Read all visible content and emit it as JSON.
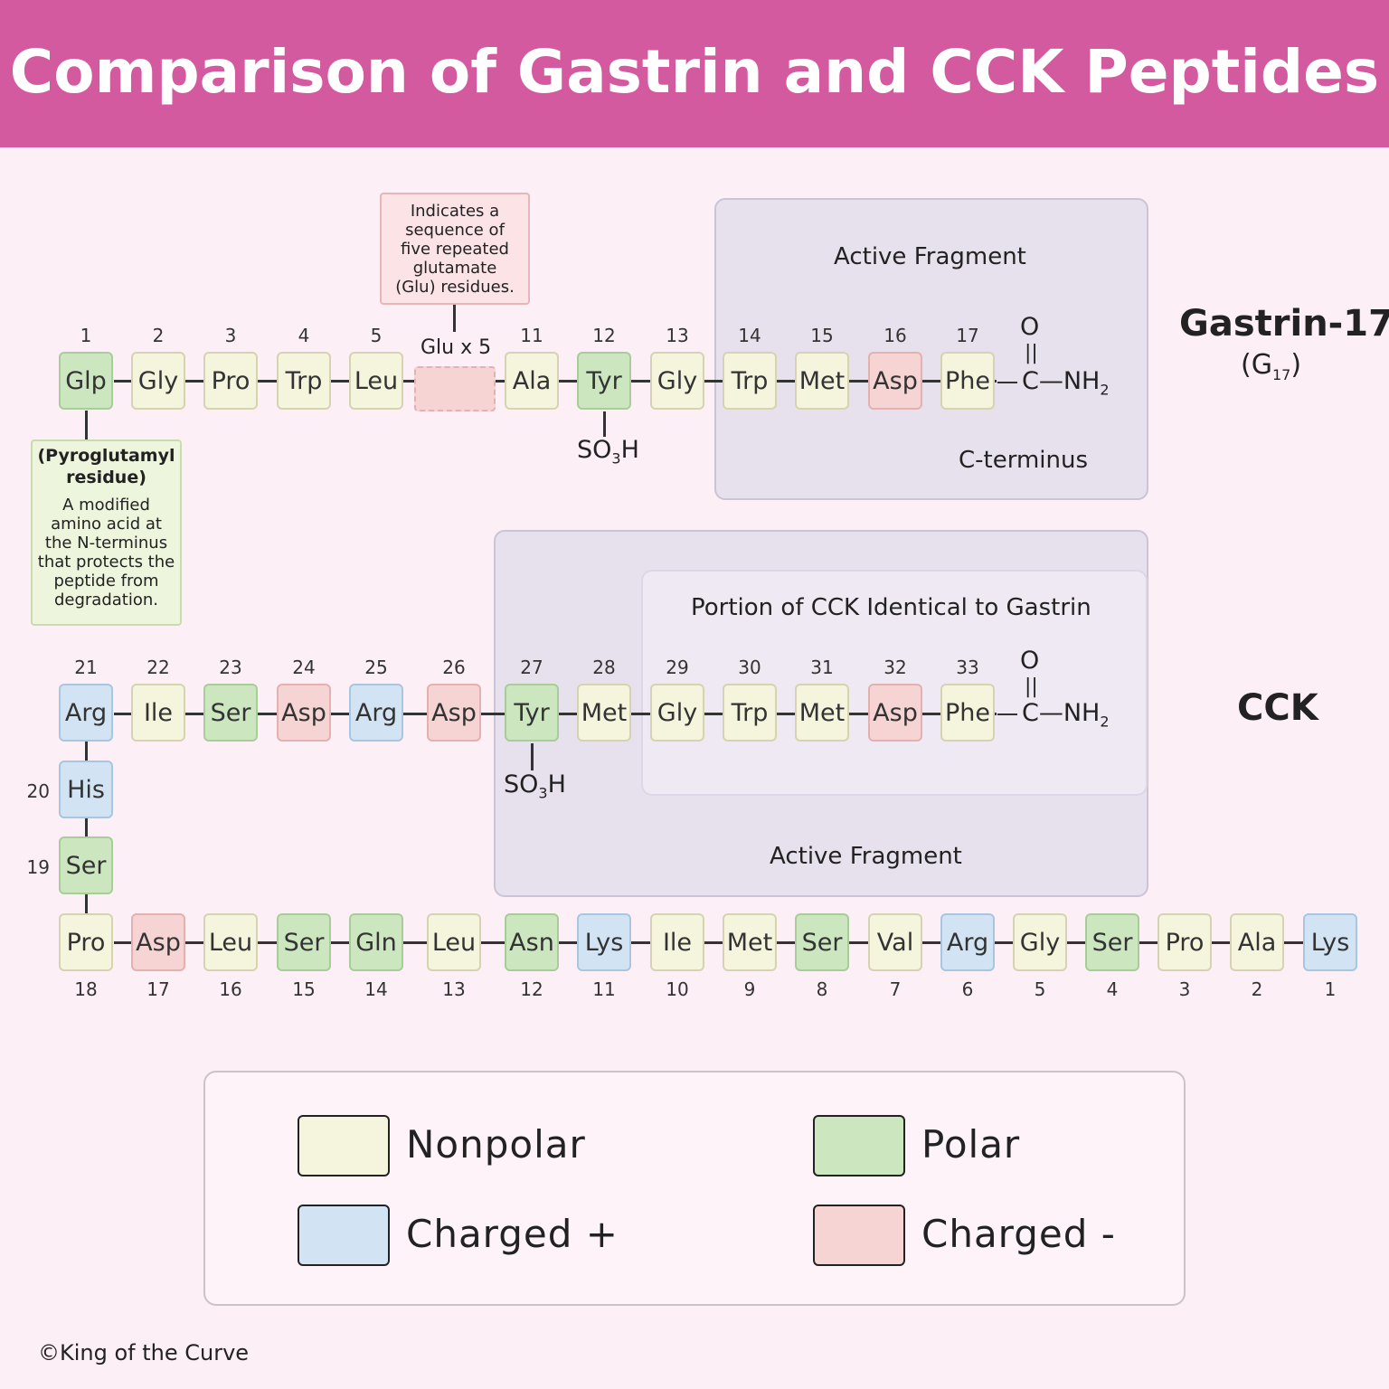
{
  "title": "Comparison of Gastrin and CCK Peptides",
  "gastrin": {
    "label": "Gastrin-17",
    "sub_label": "(G17)",
    "active_fragment": "Active Fragment",
    "c_terminus": "C-terminus",
    "glu_label": "Glu x 5",
    "glu_note": "Indicates a sequence of five repeated glutamate (Glu) residues.",
    "pyro_title": "(Pyroglutamyl residue)",
    "pyro_text": "A modified amino acid at the N-terminus that protects the peptide from degradation.",
    "so3h": "SO3H",
    "amide": "C—NH2",
    "oxygen": "O"
  },
  "cck": {
    "label": "CCK",
    "identical_portion": "Portion of CCK Identical to Gastrin",
    "active_fragment": "Active Fragment",
    "so3h": "SO3H",
    "amide": "C—NH2",
    "oxygen": "O"
  },
  "legend": {
    "nonpolar": "Nonpolar",
    "polar": "Polar",
    "charged_pos": "Charged +",
    "charged_neg": "Charged -"
  },
  "colors": {
    "nonpolar": "#f5f4dc",
    "polar": "#cce6c0",
    "charged_pos": "#d2e4f3",
    "charged_neg": "#f5d4d3",
    "header": "#d45a9f"
  },
  "copyright": "©King of the Curve"
}
